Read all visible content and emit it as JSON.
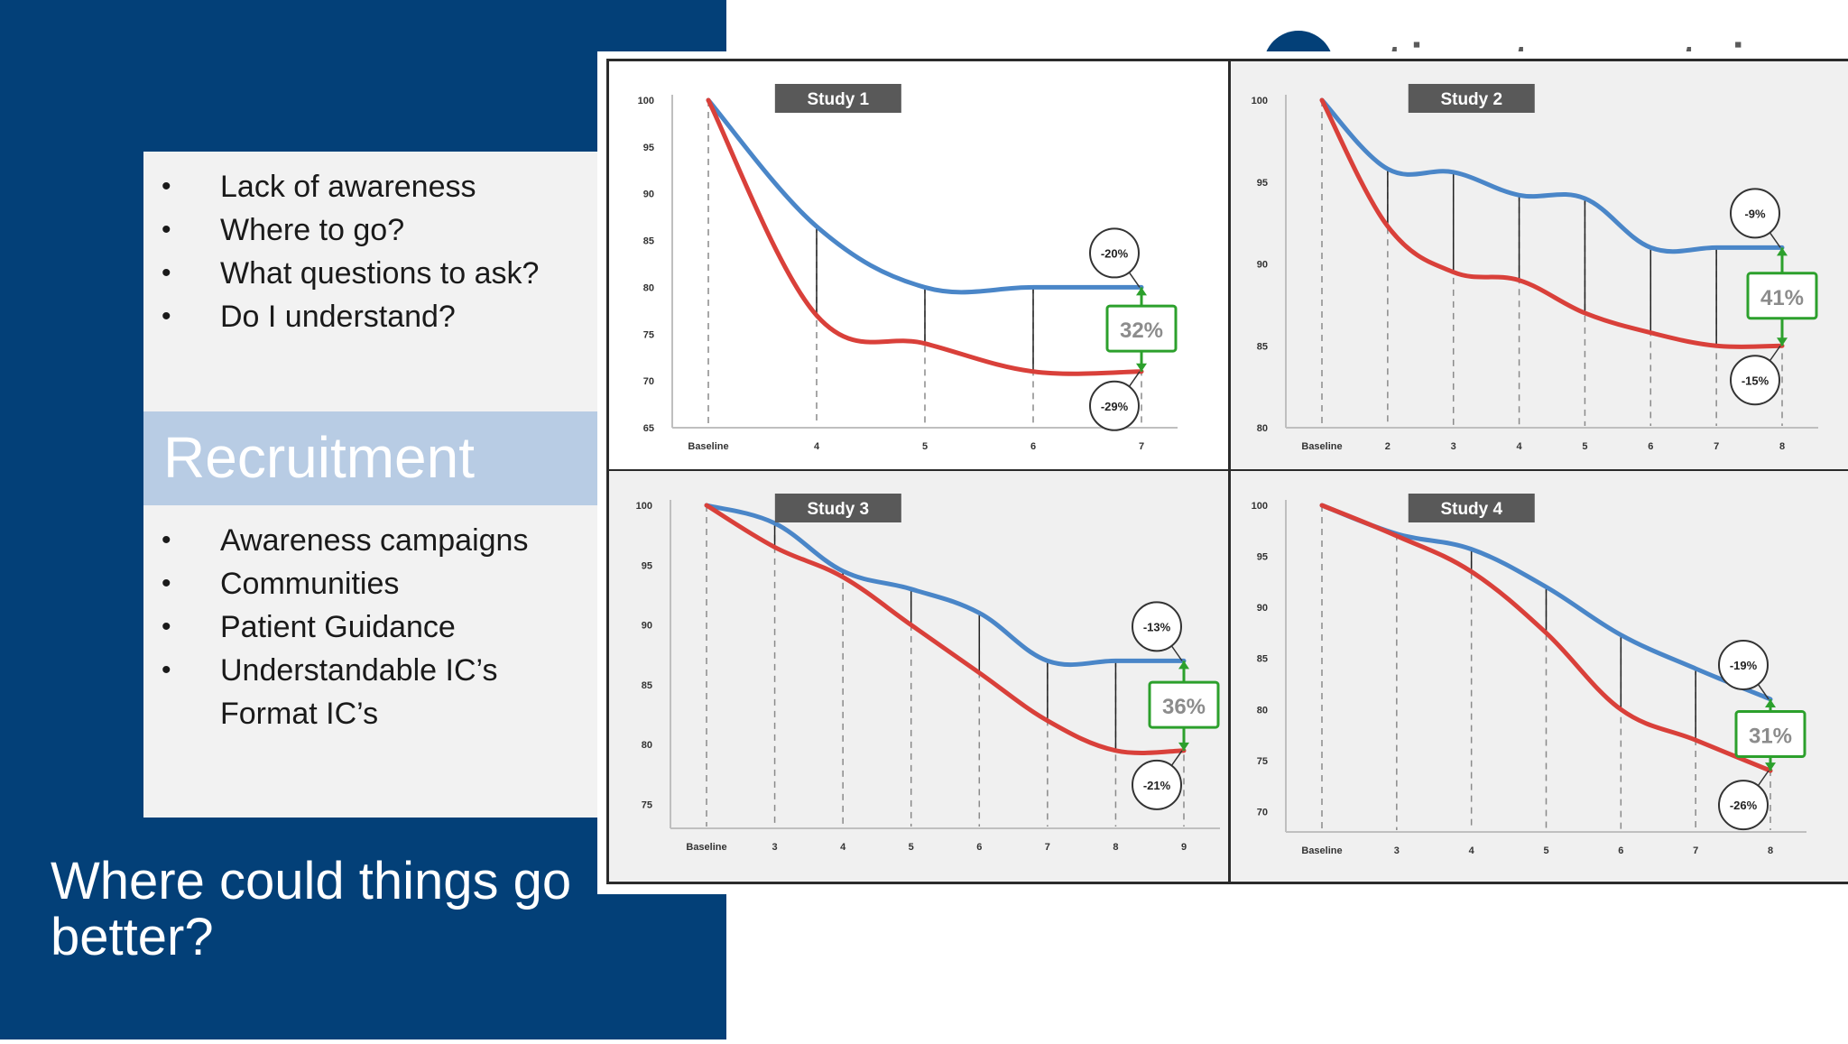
{
  "logo": {
    "text": "atient centrics"
  },
  "panel": {
    "top_bullets": [
      "Lack of awareness",
      "Where to go?",
      "What questions to ask?",
      "Do I understand?"
    ],
    "band_title": "Recruitment",
    "bottom_bullets": [
      [
        "Awareness campaigns"
      ],
      [
        "Communities"
      ],
      [
        "Patient Guidance"
      ],
      [
        "Understandable IC’s",
        "Format IC’s"
      ]
    ],
    "bullet_char": "•"
  },
  "headline": "Where could things go better?",
  "colors": {
    "navy": "#034078",
    "blue_series": "#4a86c8",
    "red_series": "#d9403a",
    "green_box": "#2ca02c"
  },
  "chart_data": [
    {
      "type": "line",
      "title": "Study 1",
      "categories": [
        "Baseline",
        "4",
        "5",
        "6",
        "7"
      ],
      "ylim": [
        65,
        100
      ],
      "yticks": [
        100,
        95,
        90,
        85,
        80,
        75,
        70,
        65
      ],
      "series": [
        {
          "values": [
            100,
            86.5,
            80,
            80,
            80
          ]
        },
        {
          "values": [
            100,
            77,
            74,
            71,
            71
          ]
        }
      ],
      "annotations": {
        "top": "-20%",
        "bottom": "-29%",
        "gap": "32%"
      }
    },
    {
      "type": "line",
      "title": "Study 2",
      "categories": [
        "Baseline",
        "2",
        "3",
        "4",
        "5",
        "6",
        "7",
        "8"
      ],
      "ylim": [
        80,
        100
      ],
      "yticks": [
        100,
        95,
        90,
        85,
        80
      ],
      "series": [
        {
          "values": [
            100,
            95.8,
            95.6,
            94.2,
            94,
            91,
            91,
            91
          ]
        },
        {
          "values": [
            100,
            92.3,
            89.5,
            89,
            87,
            85.8,
            85,
            85
          ]
        }
      ],
      "annotations": {
        "top": "-9%",
        "bottom": "-15%",
        "gap": "41%"
      }
    },
    {
      "type": "line",
      "title": "Study 3",
      "categories": [
        "Baseline",
        "3",
        "4",
        "5",
        "6",
        "7",
        "8",
        "9"
      ],
      "ylim": [
        73,
        100
      ],
      "yticks": [
        100,
        95,
        90,
        85,
        80,
        75
      ],
      "series": [
        {
          "values": [
            100,
            98.5,
            94.5,
            93,
            91,
            87,
            87,
            87
          ]
        },
        {
          "values": [
            100,
            96.5,
            94,
            90,
            86,
            82,
            79.5,
            79.5
          ]
        }
      ],
      "annotations": {
        "top": "-13%",
        "bottom": "-21%",
        "gap": "36%"
      }
    },
    {
      "type": "line",
      "title": "Study 4",
      "categories": [
        "Baseline",
        "3",
        "4",
        "5",
        "6",
        "7",
        "8"
      ],
      "ylim": [
        68,
        100
      ],
      "yticks": [
        100,
        95,
        90,
        85,
        80,
        75,
        70
      ],
      "series": [
        {
          "values": [
            100,
            97.2,
            95.7,
            92,
            87.3,
            84,
            81
          ]
        },
        {
          "values": [
            100,
            97,
            93.5,
            87.5,
            80,
            77,
            74
          ]
        }
      ],
      "annotations": {
        "top": "-19%",
        "bottom": "-26%",
        "gap": "31%"
      }
    }
  ]
}
